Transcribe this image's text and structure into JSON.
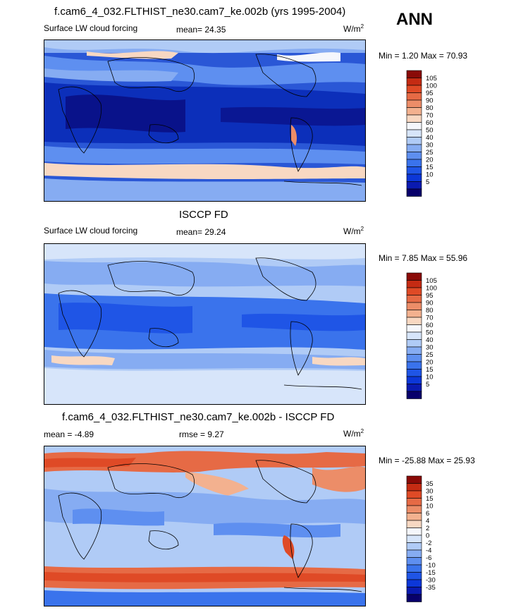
{
  "season": "ANN",
  "panels": [
    {
      "title": "f.cam6_4_032.FLTHIST_ne30.cam7_ke.002b (yrs 1995-2004)",
      "left_label": "Surface LW cloud forcing",
      "stat_label": "mean=",
      "stat_value": "24.35",
      "units": "W/m",
      "units_exp": "2",
      "minmax": "Min =   1.20 Max =  70.93",
      "colorbar": {
        "levels": [
          "5",
          "10",
          "15",
          "20",
          "25",
          "30",
          "40",
          "50",
          "60",
          "70",
          "80",
          "90",
          "95",
          "100",
          "105"
        ],
        "colors": [
          "#08006b",
          "#0a1ab0",
          "#0c37d8",
          "#1f55e6",
          "#3a73ec",
          "#5e8ff0",
          "#86acf2",
          "#b0cbf6",
          "#d7e5fa",
          "#f5f7fc",
          "#f8d8c2",
          "#f3b18f",
          "#ec8d68",
          "#e66a45",
          "#df4a26",
          "#c52b13",
          "#8a0a07"
        ]
      }
    },
    {
      "title": "ISCCP FD",
      "left_label": "Surface LW cloud forcing",
      "stat_label": "mean=",
      "stat_value": "29.24",
      "units": "W/m",
      "units_exp": "2",
      "minmax": "Min =   7.85 Max =  55.96",
      "colorbar": {
        "levels": [
          "5",
          "10",
          "15",
          "20",
          "25",
          "30",
          "40",
          "50",
          "60",
          "70",
          "80",
          "90",
          "95",
          "100",
          "105"
        ],
        "colors": [
          "#08006b",
          "#0a1ab0",
          "#0c37d8",
          "#1f55e6",
          "#3a73ec",
          "#5e8ff0",
          "#86acf2",
          "#b0cbf6",
          "#d7e5fa",
          "#f5f7fc",
          "#f8d8c2",
          "#f3b18f",
          "#ec8d68",
          "#e66a45",
          "#df4a26",
          "#c52b13",
          "#8a0a07"
        ]
      }
    },
    {
      "title": "f.cam6_4_032.FLTHIST_ne30.cam7_ke.002b - ISCCP FD",
      "left_label": "mean =  -4.89",
      "stat_label": "rmse =",
      "stat_value": "9.27",
      "units": "W/m",
      "units_exp": "2",
      "minmax": "Min = -25.88 Max =  25.93",
      "colorbar": {
        "levels": [
          "-35",
          "-30",
          "-15",
          "-10",
          "-6",
          "-4",
          "-2",
          "0",
          "2",
          "4",
          "6",
          "10",
          "15",
          "30",
          "35"
        ],
        "colors": [
          "#08006b",
          "#0a1ab0",
          "#0c37d8",
          "#1f55e6",
          "#3a73ec",
          "#5e8ff0",
          "#86acf2",
          "#b0cbf6",
          "#d7e5fa",
          "#f5f7fc",
          "#f8d8c2",
          "#f3b18f",
          "#ec8d68",
          "#e66a45",
          "#df4a26",
          "#c52b13",
          "#8a0a07"
        ]
      }
    }
  ],
  "chart_data": [
    {
      "type": "heatmap",
      "title": "f.cam6_4_032.FLTHIST_ne30.cam7_ke.002b (yrs 1995-2004)",
      "subtitle": "Surface LW cloud forcing",
      "mean": 24.35,
      "min": 1.2,
      "max": 70.93,
      "contour_levels": [
        5,
        10,
        15,
        20,
        25,
        30,
        40,
        50,
        60,
        70,
        80,
        90,
        95,
        100,
        105
      ]
    },
    {
      "type": "heatmap",
      "title": "ISCCP FD",
      "subtitle": "Surface LW cloud forcing",
      "mean": 29.24,
      "min": 7.85,
      "max": 55.96,
      "contour_levels": [
        5,
        10,
        15,
        20,
        25,
        30,
        40,
        50,
        60,
        70,
        80,
        90,
        95,
        100,
        105
      ]
    },
    {
      "type": "heatmap",
      "title": "f.cam6_4_032.FLTHIST_ne30.cam7_ke.002b - ISCCP FD",
      "mean": -4.89,
      "rmse": 9.27,
      "min": -25.88,
      "max": 25.93,
      "contour_levels": [
        -35,
        -30,
        -15,
        -10,
        -6,
        -4,
        -2,
        0,
        2,
        4,
        6,
        10,
        15,
        30,
        35
      ]
    }
  ]
}
